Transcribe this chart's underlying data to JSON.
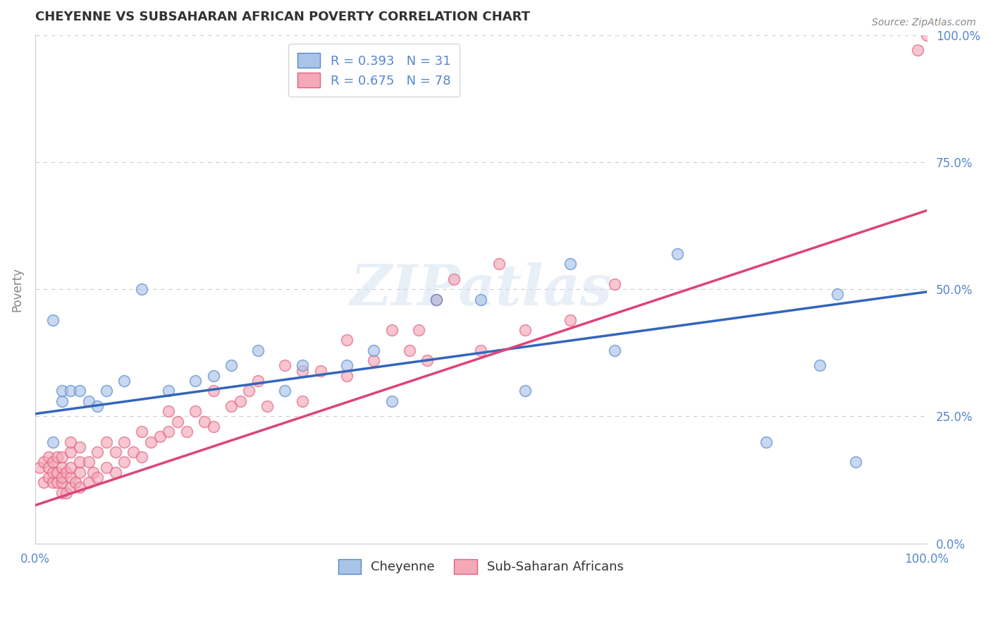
{
  "title": "CHEYENNE VS SUBSAHARAN AFRICAN POVERTY CORRELATION CHART",
  "source_text": "Source: ZipAtlas.com",
  "ylabel": "Poverty",
  "xlim": [
    0.0,
    1.0
  ],
  "ylim": [
    0.0,
    1.0
  ],
  "ytick_positions": [
    0.0,
    0.25,
    0.5,
    0.75,
    1.0
  ],
  "ytick_labels": [
    "0.0%",
    "25.0%",
    "50.0%",
    "75.0%",
    "100.0%"
  ],
  "grid_color": "#cccccc",
  "background_color": "#ffffff",
  "watermark_text": "ZIPatlas",
  "legend_label1": "R = 0.393   N = 31",
  "legend_label2": "R = 0.675   N = 78",
  "color_blue": "#aac4e8",
  "color_pink": "#f4a8b8",
  "edge_blue": "#5588cc",
  "edge_pink": "#e06080",
  "line_color_blue": "#3366bb",
  "line_color_pink": "#dd4477",
  "tick_label_color": "#5588cc",
  "blue_line_x": [
    0.0,
    1.0
  ],
  "blue_line_y": [
    0.255,
    0.495
  ],
  "pink_line_x": [
    0.0,
    1.0
  ],
  "pink_line_y": [
    0.075,
    0.655
  ],
  "cheyenne_x": [
    0.02,
    0.02,
    0.03,
    0.03,
    0.04,
    0.05,
    0.06,
    0.07,
    0.08,
    0.1,
    0.12,
    0.15,
    0.18,
    0.2,
    0.22,
    0.25,
    0.28,
    0.3,
    0.35,
    0.38,
    0.4,
    0.45,
    0.5,
    0.55,
    0.6,
    0.65,
    0.72,
    0.82,
    0.88,
    0.9,
    0.92
  ],
  "cheyenne_y": [
    0.44,
    0.2,
    0.28,
    0.3,
    0.3,
    0.3,
    0.28,
    0.27,
    0.3,
    0.32,
    0.5,
    0.3,
    0.32,
    0.33,
    0.35,
    0.38,
    0.3,
    0.35,
    0.35,
    0.38,
    0.28,
    0.48,
    0.48,
    0.3,
    0.55,
    0.38,
    0.57,
    0.2,
    0.35,
    0.49,
    0.16
  ],
  "subsaharan_x": [
    0.005,
    0.01,
    0.01,
    0.015,
    0.015,
    0.015,
    0.02,
    0.02,
    0.02,
    0.025,
    0.025,
    0.025,
    0.03,
    0.03,
    0.03,
    0.03,
    0.03,
    0.035,
    0.035,
    0.04,
    0.04,
    0.04,
    0.04,
    0.04,
    0.045,
    0.05,
    0.05,
    0.05,
    0.05,
    0.06,
    0.06,
    0.065,
    0.07,
    0.07,
    0.08,
    0.08,
    0.09,
    0.09,
    0.1,
    0.1,
    0.11,
    0.12,
    0.12,
    0.13,
    0.14,
    0.15,
    0.15,
    0.16,
    0.17,
    0.18,
    0.19,
    0.2,
    0.2,
    0.22,
    0.23,
    0.24,
    0.25,
    0.26,
    0.28,
    0.3,
    0.3,
    0.32,
    0.35,
    0.35,
    0.38,
    0.4,
    0.42,
    0.43,
    0.44,
    0.45,
    0.47,
    0.5,
    0.52,
    0.55,
    0.6,
    0.65,
    0.99,
    1.0
  ],
  "subsaharan_y": [
    0.15,
    0.12,
    0.16,
    0.13,
    0.15,
    0.17,
    0.12,
    0.14,
    0.16,
    0.12,
    0.14,
    0.17,
    0.1,
    0.12,
    0.13,
    0.15,
    0.17,
    0.1,
    0.14,
    0.11,
    0.13,
    0.15,
    0.18,
    0.2,
    0.12,
    0.11,
    0.14,
    0.16,
    0.19,
    0.12,
    0.16,
    0.14,
    0.13,
    0.18,
    0.15,
    0.2,
    0.14,
    0.18,
    0.16,
    0.2,
    0.18,
    0.17,
    0.22,
    0.2,
    0.21,
    0.22,
    0.26,
    0.24,
    0.22,
    0.26,
    0.24,
    0.23,
    0.3,
    0.27,
    0.28,
    0.3,
    0.32,
    0.27,
    0.35,
    0.28,
    0.34,
    0.34,
    0.33,
    0.4,
    0.36,
    0.42,
    0.38,
    0.42,
    0.36,
    0.48,
    0.52,
    0.38,
    0.55,
    0.42,
    0.44,
    0.51,
    0.97,
    1.0
  ]
}
